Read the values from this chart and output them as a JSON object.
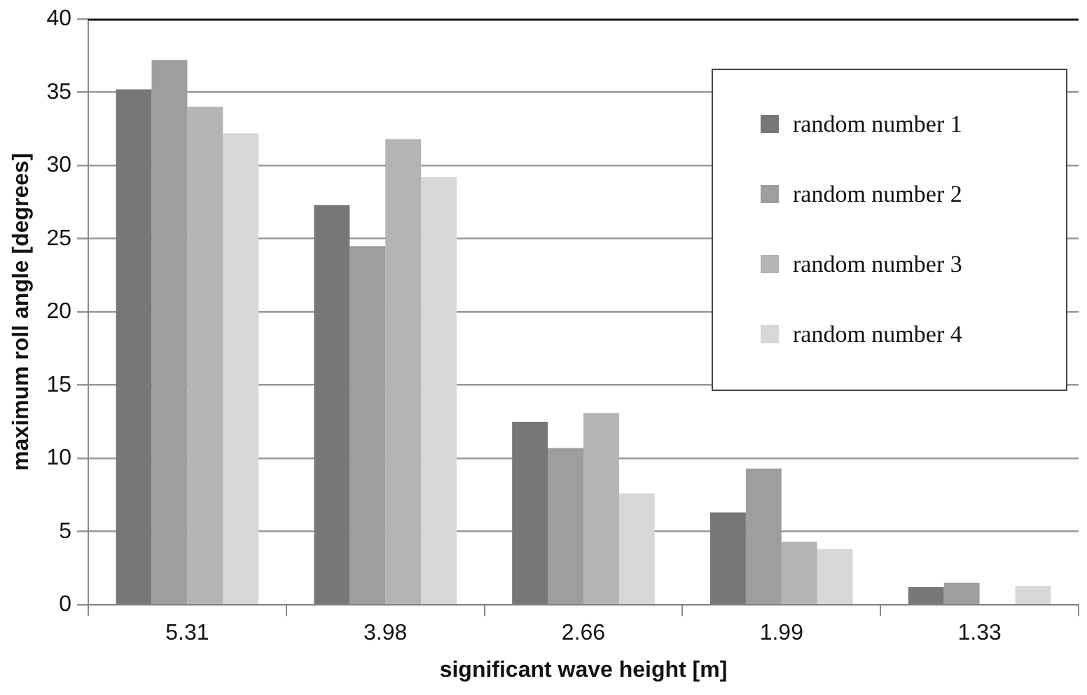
{
  "chart_data": {
    "type": "bar",
    "xlabel": "significant wave height [m]",
    "ylabel": "maximum roll angle [degrees]",
    "categories": [
      "5.31",
      "3.98",
      "2.66",
      "1.99",
      "1.33"
    ],
    "series": [
      {
        "name": "random number 1",
        "color": "#777777",
        "values": [
          35.2,
          27.3,
          12.5,
          6.3,
          1.2
        ]
      },
      {
        "name": "random number 2",
        "color": "#9e9e9e",
        "values": [
          37.2,
          24.5,
          10.7,
          9.3,
          1.5
        ]
      },
      {
        "name": "random number 3",
        "color": "#b4b4b4",
        "values": [
          34.0,
          31.8,
          13.1,
          4.3,
          0
        ]
      },
      {
        "name": "random number 4",
        "color": "#d6d8d8",
        "values": [
          32.2,
          29.2,
          7.6,
          3.8,
          1.3
        ]
      }
    ],
    "ylim": [
      0,
      40
    ],
    "yticks": [
      0,
      5,
      10,
      15,
      20,
      25,
      30,
      35,
      40
    ],
    "grid": "y",
    "legend": "top right"
  }
}
